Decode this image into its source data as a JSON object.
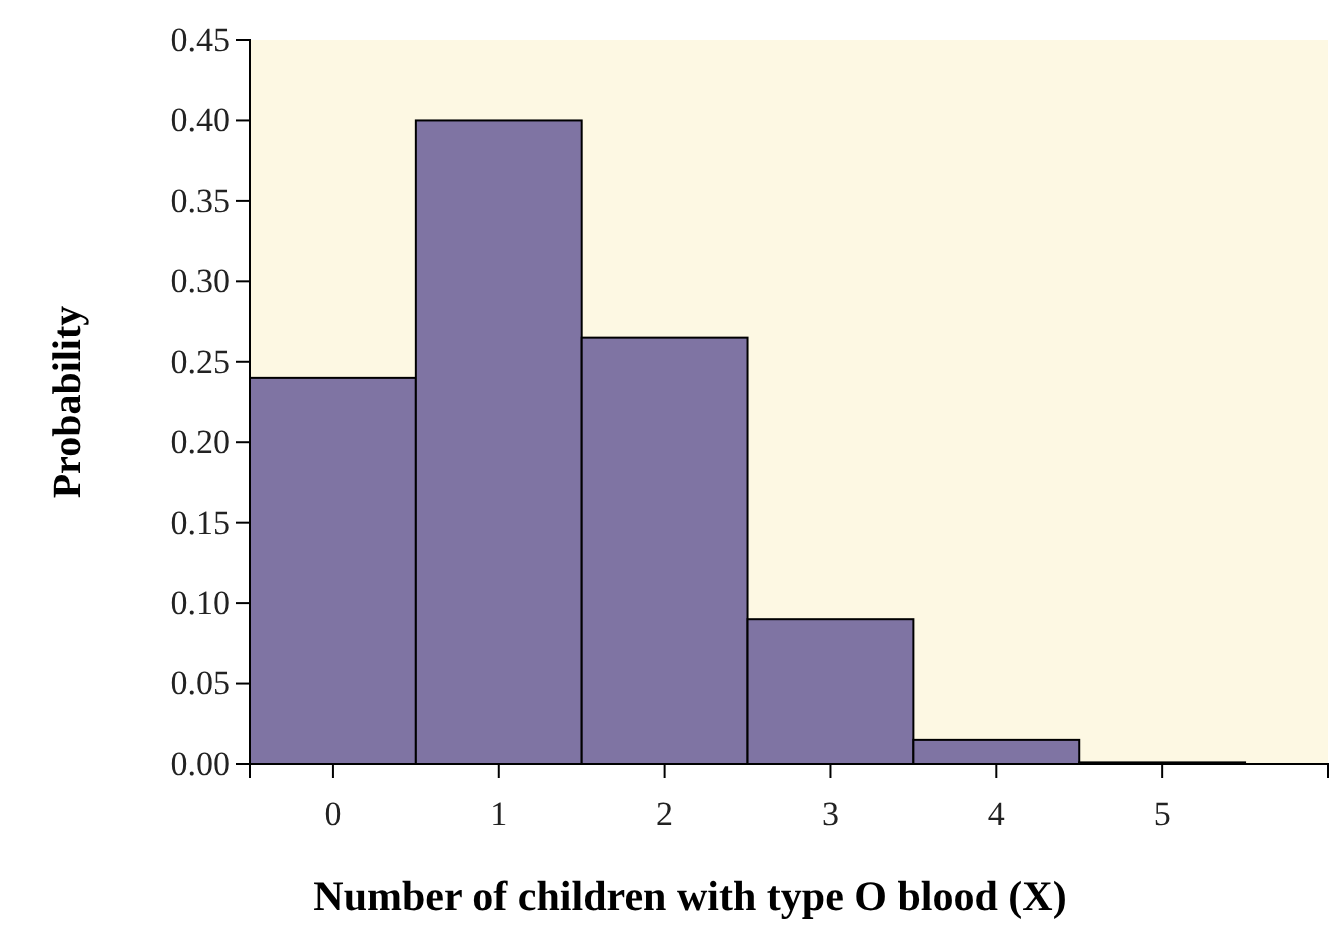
{
  "chart_data": {
    "type": "histogram",
    "xlabel": "Number of children with type O blood (X)",
    "ylabel": "Probability",
    "bins": [
      -0.5,
      0.5,
      1.5,
      2.5,
      3.5,
      4.5,
      5.5
    ],
    "values": [
      0.24,
      0.4,
      0.265,
      0.09,
      0.015,
      0.001
    ],
    "color": "#7f74a3",
    "xlim": [
      -0.5,
      6
    ],
    "xticks": [
      0,
      1,
      2,
      3,
      4,
      5
    ],
    "ylim": [
      0,
      0.45
    ],
    "yticks": [
      {
        "value": 0,
        "label": "0.00"
      },
      {
        "value": 0.05,
        "label": "0.05"
      },
      {
        "value": 0.1,
        "label": "0.10"
      },
      {
        "value": 0.15,
        "label": "0.15"
      },
      {
        "value": 0.2,
        "label": "0.20"
      },
      {
        "value": 0.25,
        "label": "0.25"
      },
      {
        "value": 0.3,
        "label": "0.30"
      },
      {
        "value": 0.35,
        "label": "0.35"
      },
      {
        "value": 0.4,
        "label": "0.40"
      },
      {
        "value": 0.45,
        "label": "0.45"
      }
    ]
  }
}
